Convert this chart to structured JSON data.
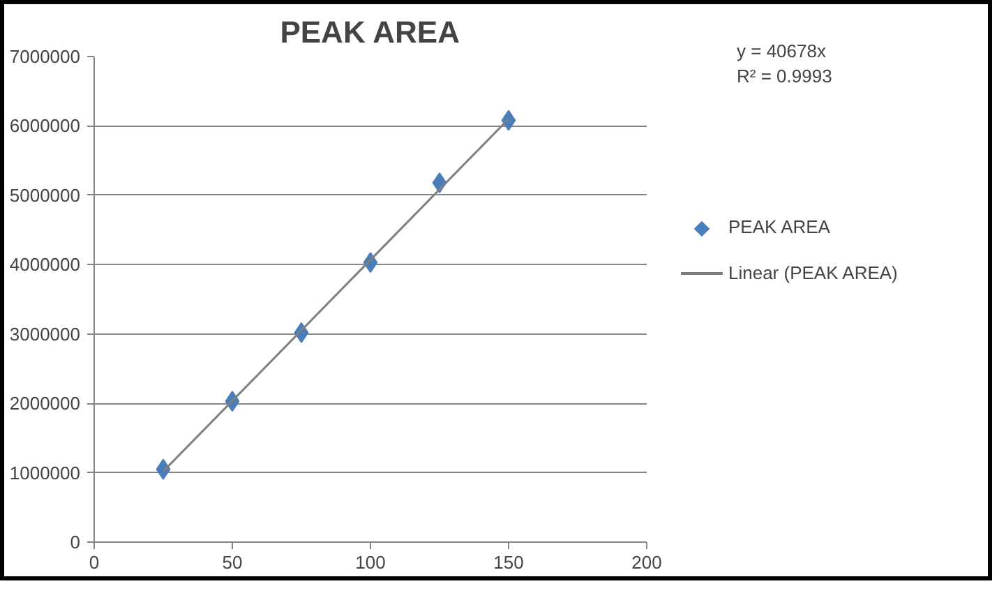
{
  "chart_data": {
    "type": "scatter",
    "title": "PEAK AREA",
    "annotations": [
      "y = 40678x\nR² = 0.9993"
    ],
    "series": [
      {
        "name": "PEAK AREA",
        "color": "#4a7ebb",
        "marker": "diamond",
        "x": [
          25,
          50,
          75,
          100,
          125,
          150
        ],
        "values": [
          1050000,
          2030000,
          3020000,
          4030000,
          5180000,
          6080000
        ]
      },
      {
        "name": "Linear (PEAK AREA)",
        "type": "line",
        "color": "#7f7f7f",
        "line_style": "solid",
        "x": [
          25,
          150
        ],
        "values": [
          1020000,
          6100000
        ]
      }
    ],
    "xlim": [
      0,
      200
    ],
    "ylim": [
      0,
      7000000
    ],
    "xticks": [
      0,
      50,
      100,
      150,
      200
    ],
    "yticks": [
      0,
      1000000,
      2000000,
      3000000,
      4000000,
      5000000,
      6000000,
      7000000
    ],
    "grid": "y",
    "legend": "right"
  }
}
